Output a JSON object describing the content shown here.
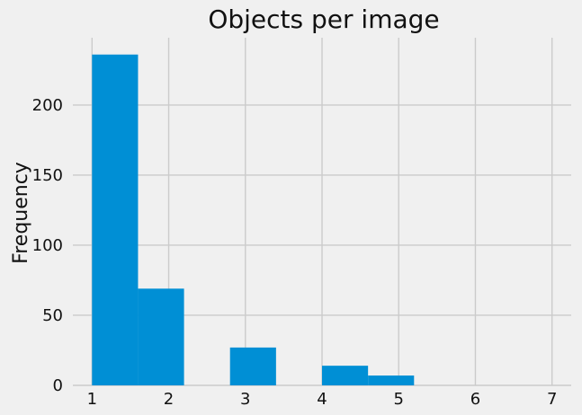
{
  "chart_data": {
    "type": "bar",
    "title": "Objects per image",
    "xlabel": "",
    "ylabel": "Frequency",
    "bins": [
      {
        "x0": 1.0,
        "x1": 1.6,
        "value": 236
      },
      {
        "x0": 1.6,
        "x1": 2.2,
        "value": 69
      },
      {
        "x0": 2.2,
        "x1": 2.8,
        "value": 0
      },
      {
        "x0": 2.8,
        "x1": 3.4,
        "value": 27
      },
      {
        "x0": 3.4,
        "x1": 4.0,
        "value": 0
      },
      {
        "x0": 4.0,
        "x1": 4.6,
        "value": 14
      },
      {
        "x0": 4.6,
        "x1": 5.2,
        "value": 7
      }
    ],
    "xlim": [
      0.75,
      7.25
    ],
    "ylim": [
      0,
      248
    ],
    "x_ticks": [
      "1",
      "2",
      "3",
      "4",
      "5",
      "6",
      "7"
    ],
    "y_ticks": [
      "0",
      "50",
      "100",
      "150",
      "200"
    ],
    "grid": true,
    "bar_color": "#008fd5",
    "background_color": "#f0f0f0",
    "grid_color": "#cbcbcb"
  }
}
